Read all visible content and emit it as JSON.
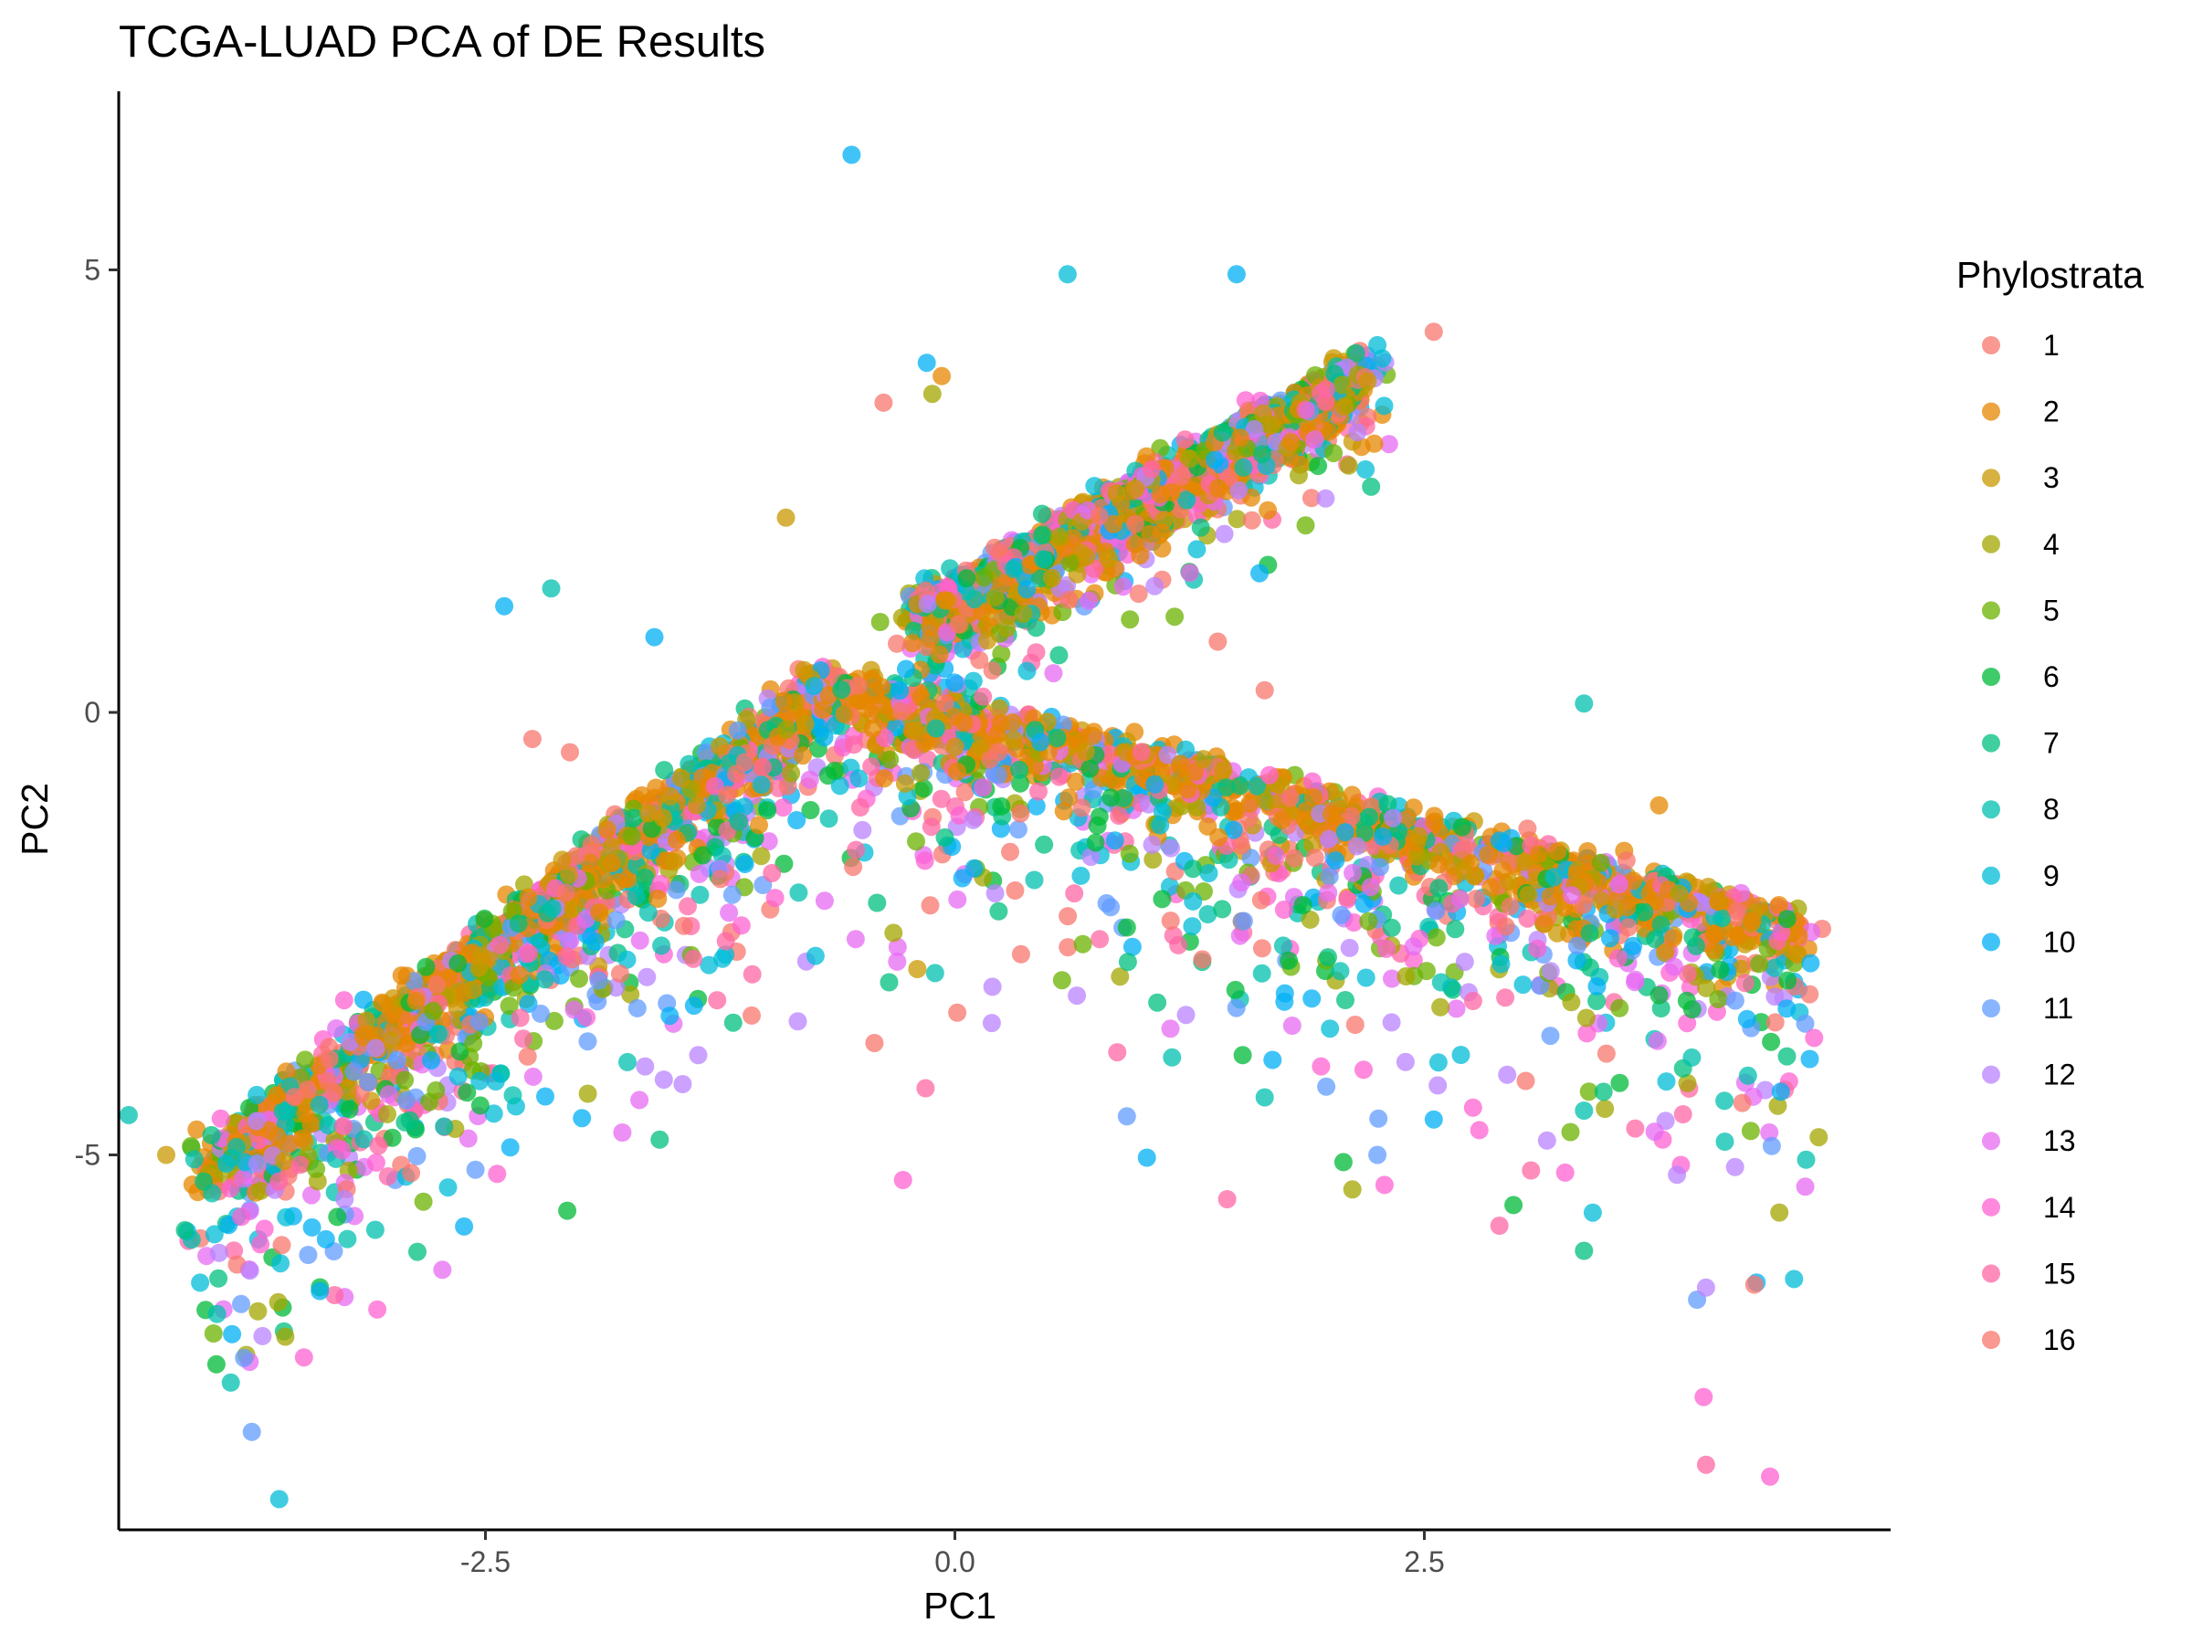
{
  "chart_data": {
    "type": "scatter",
    "title": "TCGA-LUAD PCA of DE Results",
    "xlabel": "PC1",
    "ylabel": "PC2",
    "xlim": [
      -4.4,
      5.0
    ],
    "ylim": [
      -9.0,
      7.0
    ],
    "x_ticks": [
      -2.5,
      0.0,
      2.5
    ],
    "x_tick_labels": [
      "-2.5",
      "0.0",
      "2.5"
    ],
    "y_ticks": [
      5,
      0,
      -5
    ],
    "y_tick_labels": [
      "5",
      "0",
      "-5"
    ],
    "grid": false,
    "legend": {
      "title": "Phylostrata",
      "position": "right",
      "entries": [
        "1",
        "2",
        "3",
        "4",
        "5",
        "6",
        "7",
        "8",
        "9",
        "10",
        "11",
        "12",
        "13",
        "14",
        "15",
        "16"
      ]
    },
    "series_colors": [
      "#F8766D",
      "#E58700",
      "#C99800",
      "#A3A500",
      "#6BB100",
      "#00BA38",
      "#00BF7D",
      "#00C0AF",
      "#00BCD8",
      "#00B0F6",
      "#619CFF",
      "#B983FF",
      "#E76BF3",
      "#FD61D1",
      "#FF67A4",
      "#F8766D"
    ],
    "point_alpha": 0.75,
    "structure_segments": [
      {
        "from": [
          -4.0,
          -5.0
        ],
        "to": [
          -0.7,
          0.5
        ],
        "spread": 1.7,
        "bias": 0.75,
        "weights": [
          1,
          5,
          2,
          1,
          1,
          1,
          1,
          1,
          1,
          1,
          1,
          1,
          1,
          1,
          1,
          1
        ]
      },
      {
        "from": [
          -0.7,
          0.5
        ],
        "to": [
          4.55,
          -2.3
        ],
        "spread": 2.1,
        "bias": 0.8,
        "weights": [
          1,
          5,
          2,
          1,
          1,
          1,
          1,
          1,
          1,
          1,
          1,
          1,
          1,
          1,
          1,
          1
        ]
      },
      {
        "from": [
          -0.2,
          1.2
        ],
        "to": [
          2.2,
          4.0
        ],
        "spread": 0.8,
        "bias": 0.55,
        "weights": [
          1,
          4,
          2,
          1,
          1,
          1,
          1,
          1,
          1,
          1,
          1,
          1,
          1,
          1,
          1,
          1
        ]
      }
    ],
    "notable_points": [
      {
        "x": -0.55,
        "y": 6.3,
        "series": "10"
      },
      {
        "x": 0.6,
        "y": 4.95,
        "series": "9"
      },
      {
        "x": 1.5,
        "y": 4.95,
        "series": "10"
      },
      {
        "x": 2.55,
        "y": 4.3,
        "series": "1"
      },
      {
        "x": -0.15,
        "y": 3.95,
        "series": "10"
      },
      {
        "x": -0.07,
        "y": 3.8,
        "series": "2"
      },
      {
        "x": -0.12,
        "y": 3.6,
        "series": "4"
      },
      {
        "x": -0.38,
        "y": 3.5,
        "series": "1"
      },
      {
        "x": 2.25,
        "y": 4.15,
        "series": "9"
      },
      {
        "x": -0.9,
        "y": 2.2,
        "series": "3"
      },
      {
        "x": -2.15,
        "y": 1.4,
        "series": "8"
      },
      {
        "x": -2.4,
        "y": 1.2,
        "series": "10"
      },
      {
        "x": -1.6,
        "y": 0.85,
        "series": "10"
      },
      {
        "x": 3.35,
        "y": 0.1,
        "series": "8"
      },
      {
        "x": 1.4,
        "y": 0.8,
        "series": "1"
      },
      {
        "x": 1.65,
        "y": 0.25,
        "series": "1"
      },
      {
        "x": -2.25,
        "y": -0.3,
        "series": "1"
      },
      {
        "x": -2.05,
        "y": -0.45,
        "series": "1"
      },
      {
        "x": 3.75,
        "y": -1.05,
        "series": "2"
      },
      {
        "x": 4.0,
        "y": -8.5,
        "series": "15"
      },
      {
        "x": 4.0,
        "y": -6.5,
        "series": "12"
      },
      {
        "x": 2.9,
        "y": -5.8,
        "series": "15"
      },
      {
        "x": 1.45,
        "y": -5.5,
        "series": "15"
      },
      {
        "x": 3.25,
        "y": -5.2,
        "series": "14"
      },
      {
        "x": 2.25,
        "y": -5.0,
        "series": "11"
      },
      {
        "x": 2.55,
        "y": -4.6,
        "series": "10"
      },
      {
        "x": 1.65,
        "y": -4.35,
        "series": "8"
      },
      {
        "x": -3.25,
        "y": -5.5,
        "series": "12"
      },
      {
        "x": -4.1,
        "y": -5.85,
        "series": "7"
      },
      {
        "x": -3.8,
        "y": -5.7,
        "series": "14"
      },
      {
        "x": -4.0,
        "y": -5.3,
        "series": "7"
      },
      {
        "x": -4.2,
        "y": -5.0,
        "series": "3"
      },
      {
        "x": -4.05,
        "y": -5.05,
        "series": "8"
      },
      {
        "x": -4.4,
        "y": -4.55,
        "series": "8"
      },
      {
        "x": -3.6,
        "y": -5.3,
        "series": "15"
      },
      {
        "x": -1.45,
        "y": -4.2,
        "series": "12"
      },
      {
        "x": -1.55,
        "y": -4.15,
        "series": "12"
      },
      {
        "x": -1.65,
        "y": -4.0,
        "series": "12"
      },
      {
        "x": 1.95,
        "y": -4.0,
        "series": "14"
      },
      {
        "x": 2.4,
        "y": -3.95,
        "series": "12"
      },
      {
        "x": 3.35,
        "y": -4.5,
        "series": "8"
      },
      {
        "x": 4.1,
        "y": -4.85,
        "series": "8"
      },
      {
        "x": 4.35,
        "y": -4.9,
        "series": "11"
      },
      {
        "x": 4.6,
        "y": -4.8,
        "series": "4"
      },
      {
        "x": 0.65,
        "y": -3.2,
        "series": "12"
      },
      {
        "x": 0.2,
        "y": -3.1,
        "series": "12"
      },
      {
        "x": -0.35,
        "y": -3.05,
        "series": "7"
      },
      {
        "x": -0.2,
        "y": -2.9,
        "series": "3"
      }
    ]
  }
}
